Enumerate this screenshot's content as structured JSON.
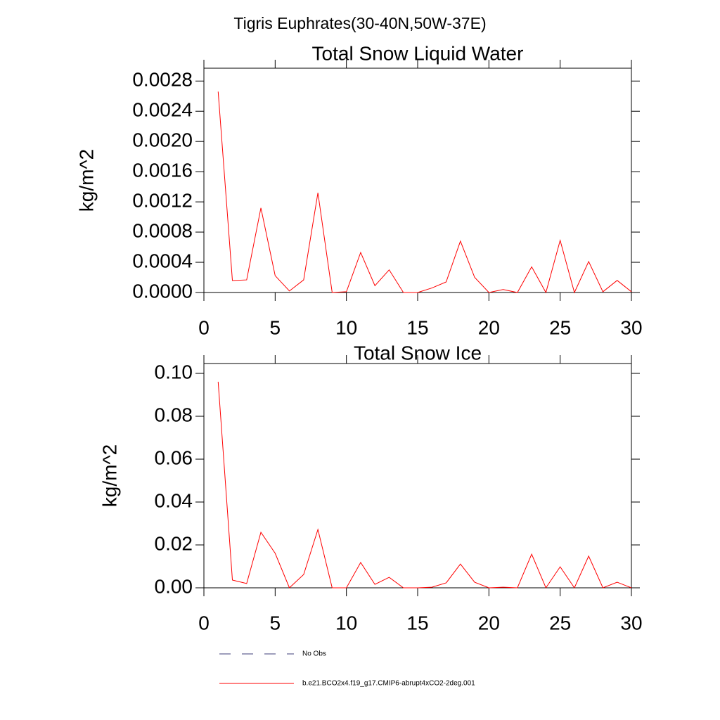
{
  "title": "Tigris Euphrates(30-40N,50W-37E)",
  "legend": [
    {
      "label": "No Obs",
      "color": "#3c3c78",
      "style": "dashed"
    },
    {
      "label": "b.e21.BCO2x4.f19_g17.CMIP6-abrupt4xCO2-2deg.001",
      "color": "#ff0000",
      "style": "solid"
    }
  ],
  "chart_data": [
    {
      "type": "line",
      "title": "Total Snow Liquid Water",
      "y_label": "kg/m^2",
      "color": "#ff0000",
      "x": [
        1,
        2,
        3,
        4,
        5,
        6,
        7,
        8,
        9,
        10,
        11,
        12,
        13,
        14,
        15,
        16,
        17,
        18,
        19,
        20,
        21,
        22,
        23,
        24,
        25,
        26,
        27,
        28,
        29,
        30
      ],
      "values": [
        0.00266,
        0.000158,
        0.000167,
        0.00112,
        0.000223,
        2e-05,
        0.000167,
        0.00132,
        0,
        1e-05,
        0.00053,
        9e-05,
        0.0003,
        0,
        0,
        6e-05,
        0.00014,
        0.00068,
        0.0002,
        0,
        4e-05,
        0,
        0.00034,
        0,
        0.00069,
        0,
        0.00041,
        1e-05,
        0.00016,
        1e-05
      ],
      "xlim": [
        0,
        30
      ],
      "xticks": [
        0,
        5,
        10,
        15,
        20,
        25,
        30
      ],
      "ylim": [
        0,
        0.00297
      ],
      "yticks": [
        {
          "value": 0,
          "label": "0.0000"
        },
        {
          "value": 0.0004,
          "label": "0.0004"
        },
        {
          "value": 0.0008,
          "label": "0.0008"
        },
        {
          "value": 0.0012,
          "label": "0.0012"
        },
        {
          "value": 0.0016,
          "label": "0.0016"
        },
        {
          "value": 0.002,
          "label": "0.0020"
        },
        {
          "value": 0.0024,
          "label": "0.0024"
        },
        {
          "value": 0.0028,
          "label": "0.0028"
        }
      ]
    },
    {
      "type": "line",
      "title": "Total Snow Ice",
      "y_label": "kg/m^2",
      "color": "#ff0000",
      "x": [
        1,
        2,
        3,
        4,
        5,
        6,
        7,
        8,
        9,
        10,
        11,
        12,
        13,
        14,
        15,
        16,
        17,
        18,
        19,
        20,
        21,
        22,
        23,
        24,
        25,
        26,
        27,
        28,
        29,
        30
      ],
      "values": [
        0.0961,
        0.0036,
        0.002,
        0.0259,
        0.0161,
        0,
        0.0062,
        0.0272,
        0,
        0,
        0.0118,
        0.0016,
        0.0049,
        0,
        0,
        0.0003,
        0.0023,
        0.0111,
        0.0026,
        0,
        0.0003,
        0,
        0.0157,
        0,
        0.0098,
        0,
        0.0148,
        0,
        0.0026,
        0
      ],
      "xlim": [
        0,
        30
      ],
      "xticks": [
        0,
        5,
        10,
        15,
        20,
        25,
        30
      ],
      "ylim": [
        0,
        0.1046
      ],
      "yticks": [
        {
          "value": 0,
          "label": "0.00"
        },
        {
          "value": 0.02,
          "label": "0.02"
        },
        {
          "value": 0.04,
          "label": "0.04"
        },
        {
          "value": 0.06,
          "label": "0.06"
        },
        {
          "value": 0.08,
          "label": "0.08"
        },
        {
          "value": 0.1,
          "label": "0.10"
        }
      ]
    }
  ]
}
